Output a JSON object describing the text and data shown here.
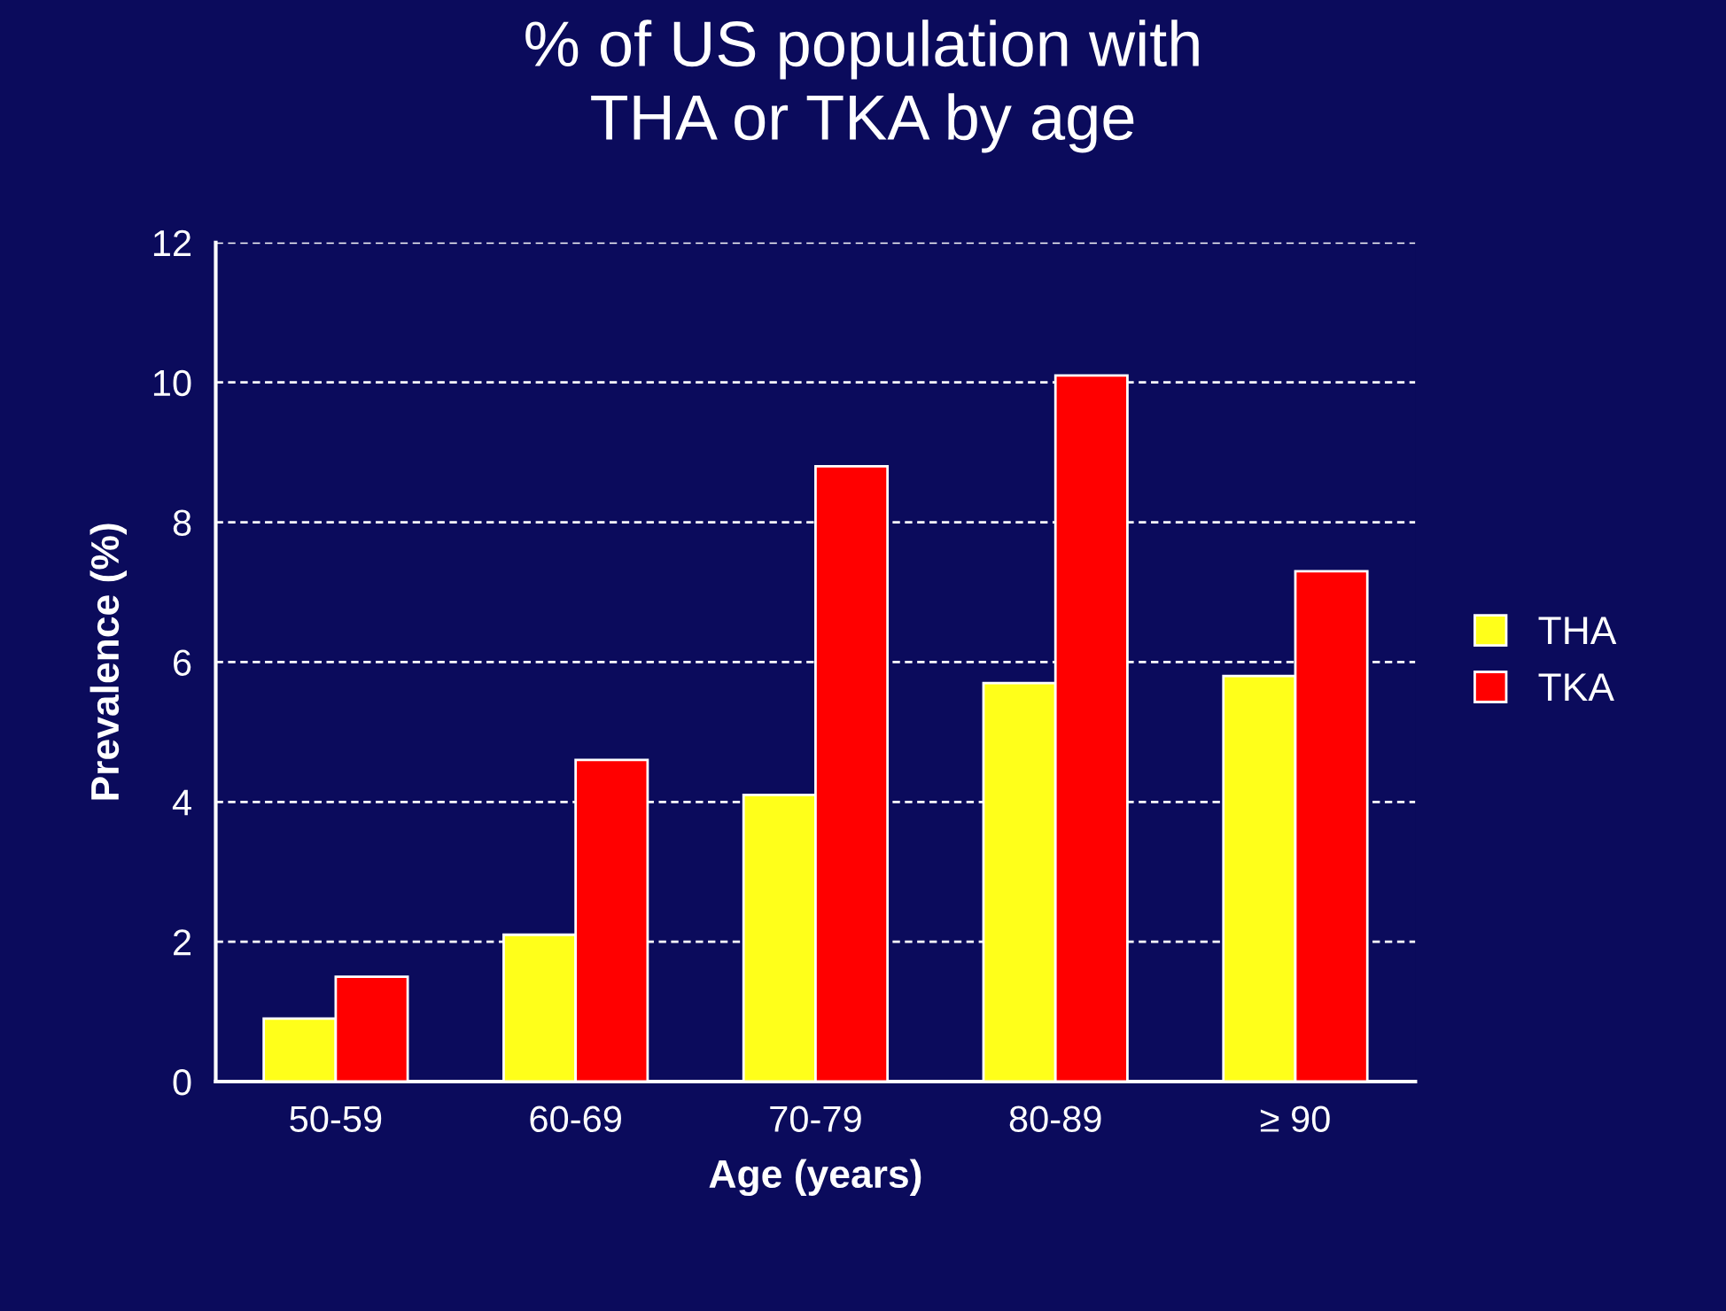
{
  "chart_data": {
    "type": "bar",
    "title": "% of US population with\nTHA or TKA by age",
    "xlabel": "Age (years)",
    "ylabel": "Prevalence (%)",
    "categories": [
      "50-59",
      "60-69",
      "70-79",
      "80-89",
      "≥ 90"
    ],
    "series": [
      {
        "name": "THA",
        "color": "#ffff1a",
        "values": [
          0.9,
          2.1,
          4.1,
          5.7,
          5.8
        ]
      },
      {
        "name": "TKA",
        "color": "#ff0000",
        "values": [
          1.5,
          4.6,
          8.8,
          10.1,
          7.3
        ]
      }
    ],
    "ylim": [
      0,
      12
    ],
    "yticks": [
      0,
      2,
      4,
      6,
      8,
      10,
      12
    ],
    "grid": "y",
    "legend": "right"
  }
}
